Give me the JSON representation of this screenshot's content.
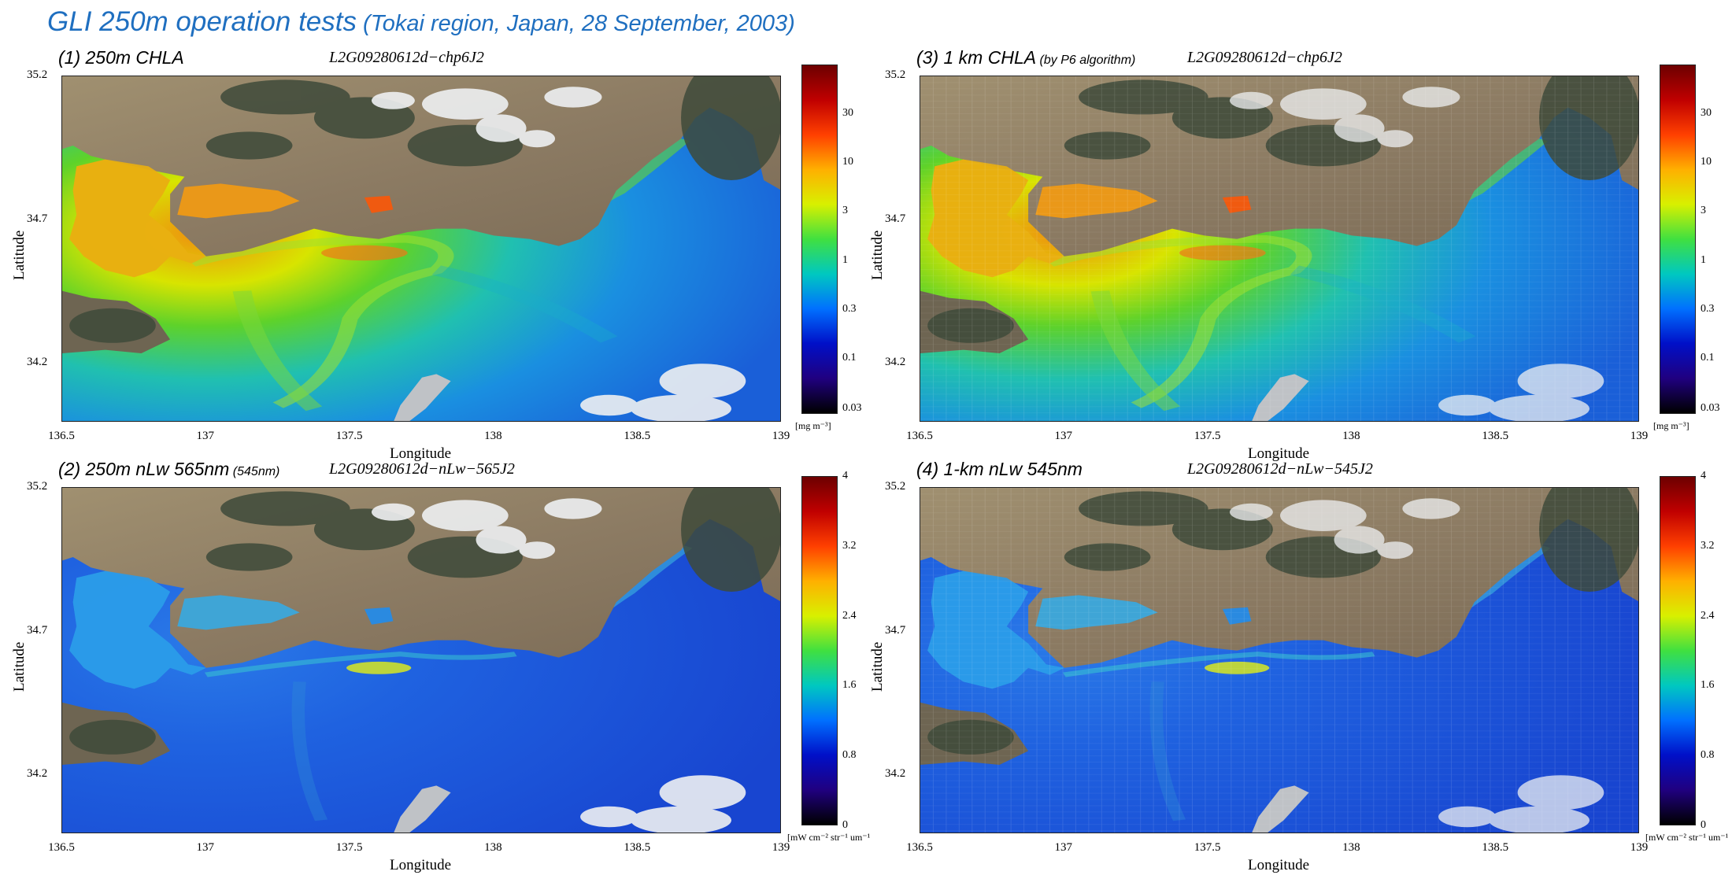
{
  "title": {
    "main": "GLI 250m operation tests",
    "sub": " (Tokai region, Japan, 28 September, 2003)"
  },
  "panels": [
    {
      "id": "p1",
      "title": "(1) 250m CHLA",
      "note": "",
      "product_id": "L2G09280612d−chp6J2",
      "variable": "chla",
      "resolution": "250m",
      "colorbar": {
        "ticks": [
          "30",
          "10",
          "3",
          "1",
          "0.3",
          "0.1",
          "0.03"
        ],
        "unit": "[mg m⁻³]"
      }
    },
    {
      "id": "p3",
      "title": "(3) 1 km CHLA",
      "note": " (by P6 algorithm)",
      "product_id": "L2G09280612d−chp6J2",
      "variable": "chla",
      "resolution": "1km",
      "colorbar": {
        "ticks": [
          "30",
          "10",
          "3",
          "1",
          "0.3",
          "0.1",
          "0.03"
        ],
        "unit": "[mg m⁻³]"
      }
    },
    {
      "id": "p2",
      "title": "(2) 250m nLw 565nm",
      "note": " (545nm)",
      "product_id": "L2G09280612d−nLw−565J2",
      "variable": "nlw",
      "resolution": "250m",
      "colorbar": {
        "ticks": [
          "4",
          "3.2",
          "2.4",
          "1.6",
          "0.8",
          "0"
        ],
        "unit": "[mW cm⁻² str⁻¹ um⁻¹"
      }
    },
    {
      "id": "p4",
      "title": "(4) 1-km nLw 545nm",
      "note": "",
      "product_id": "L2G09280612d−nLw−545J2",
      "variable": "nlw",
      "resolution": "1km",
      "colorbar": {
        "ticks": [
          "4",
          "3.2",
          "2.4",
          "1.6",
          "0.8",
          "0"
        ],
        "unit": "[mW cm⁻² str⁻¹ um⁻¹"
      }
    }
  ],
  "axes": {
    "xlabel": "Longitude",
    "ylabel": "Latitude",
    "xticks": [
      "136.5",
      "137",
      "137.5",
      "138",
      "138.5",
      "139"
    ],
    "yticks": [
      "35.2",
      "34.7",
      "34.2"
    ]
  },
  "colors": {
    "title": "#1f6fc0",
    "land": "#8c7b63",
    "forest": "#3e4a3a",
    "cloud": "#eef0f2",
    "ocean_low": "#1a4fd6",
    "ocean_high": "#e8461a",
    "colorbar": [
      "#6d0000",
      "#c00000",
      "#ff4000",
      "#ffb000",
      "#d8f000",
      "#40e040",
      "#00c8c0",
      "#0070ff",
      "#0010c8",
      "#200080",
      "#000000"
    ]
  }
}
